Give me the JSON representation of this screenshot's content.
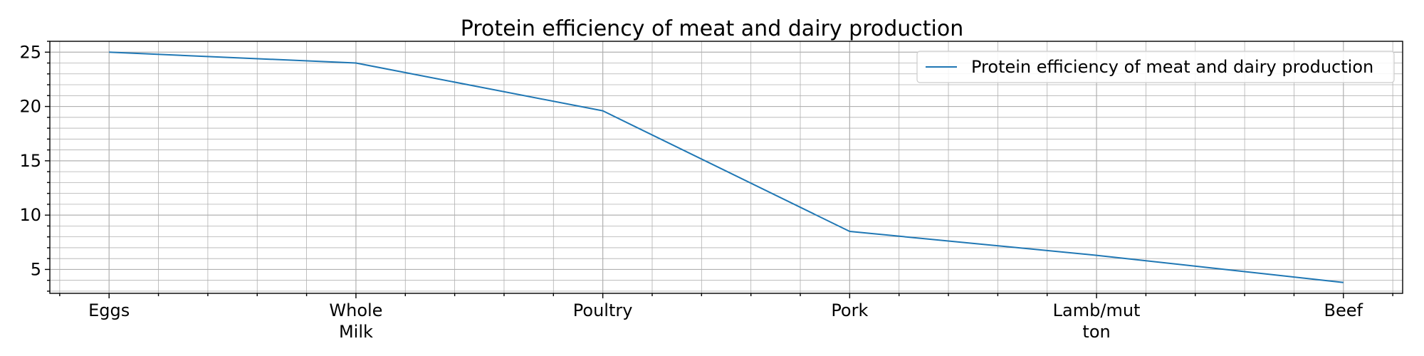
{
  "chart_data": {
    "type": "line",
    "title": "Protein efficiency of meat and dairy production",
    "xlabel": "",
    "ylabel": "",
    "categories": [
      "Eggs",
      "Whole\nMilk",
      "Poultry",
      "Pork",
      "Lamb/mut\nton",
      "Beef"
    ],
    "series": [
      {
        "name": "Protein efficiency of meat and dairy production",
        "values": [
          25.0,
          24.0,
          19.6,
          8.5,
          6.3,
          3.8
        ],
        "color": "#1f77b4"
      }
    ],
    "ylim": [
      2.8,
      26.0
    ],
    "yticks": [
      5,
      10,
      15,
      20,
      25
    ],
    "y_minor_step": 1,
    "x_minor_per_category": 5,
    "grid": true,
    "legend_position": "top-right"
  }
}
